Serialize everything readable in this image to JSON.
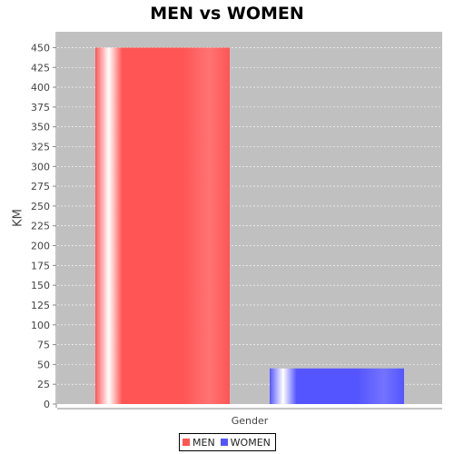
{
  "chart_data": {
    "type": "bar",
    "title": "MEN vs WOMEN",
    "xlabel": "",
    "ylabel": "KM",
    "categories": [
      "Gender"
    ],
    "series": [
      {
        "name": "MEN",
        "values": [
          450
        ],
        "color": "#ff5555"
      },
      {
        "name": "WOMEN",
        "values": [
          45
        ],
        "color": "#5555ff"
      }
    ],
    "ylim": [
      0,
      450
    ],
    "yticks": [
      0,
      25,
      50,
      75,
      100,
      125,
      150,
      175,
      200,
      225,
      250,
      275,
      300,
      325,
      350,
      375,
      400,
      425,
      450
    ],
    "grid": true,
    "legend": "bottom"
  }
}
